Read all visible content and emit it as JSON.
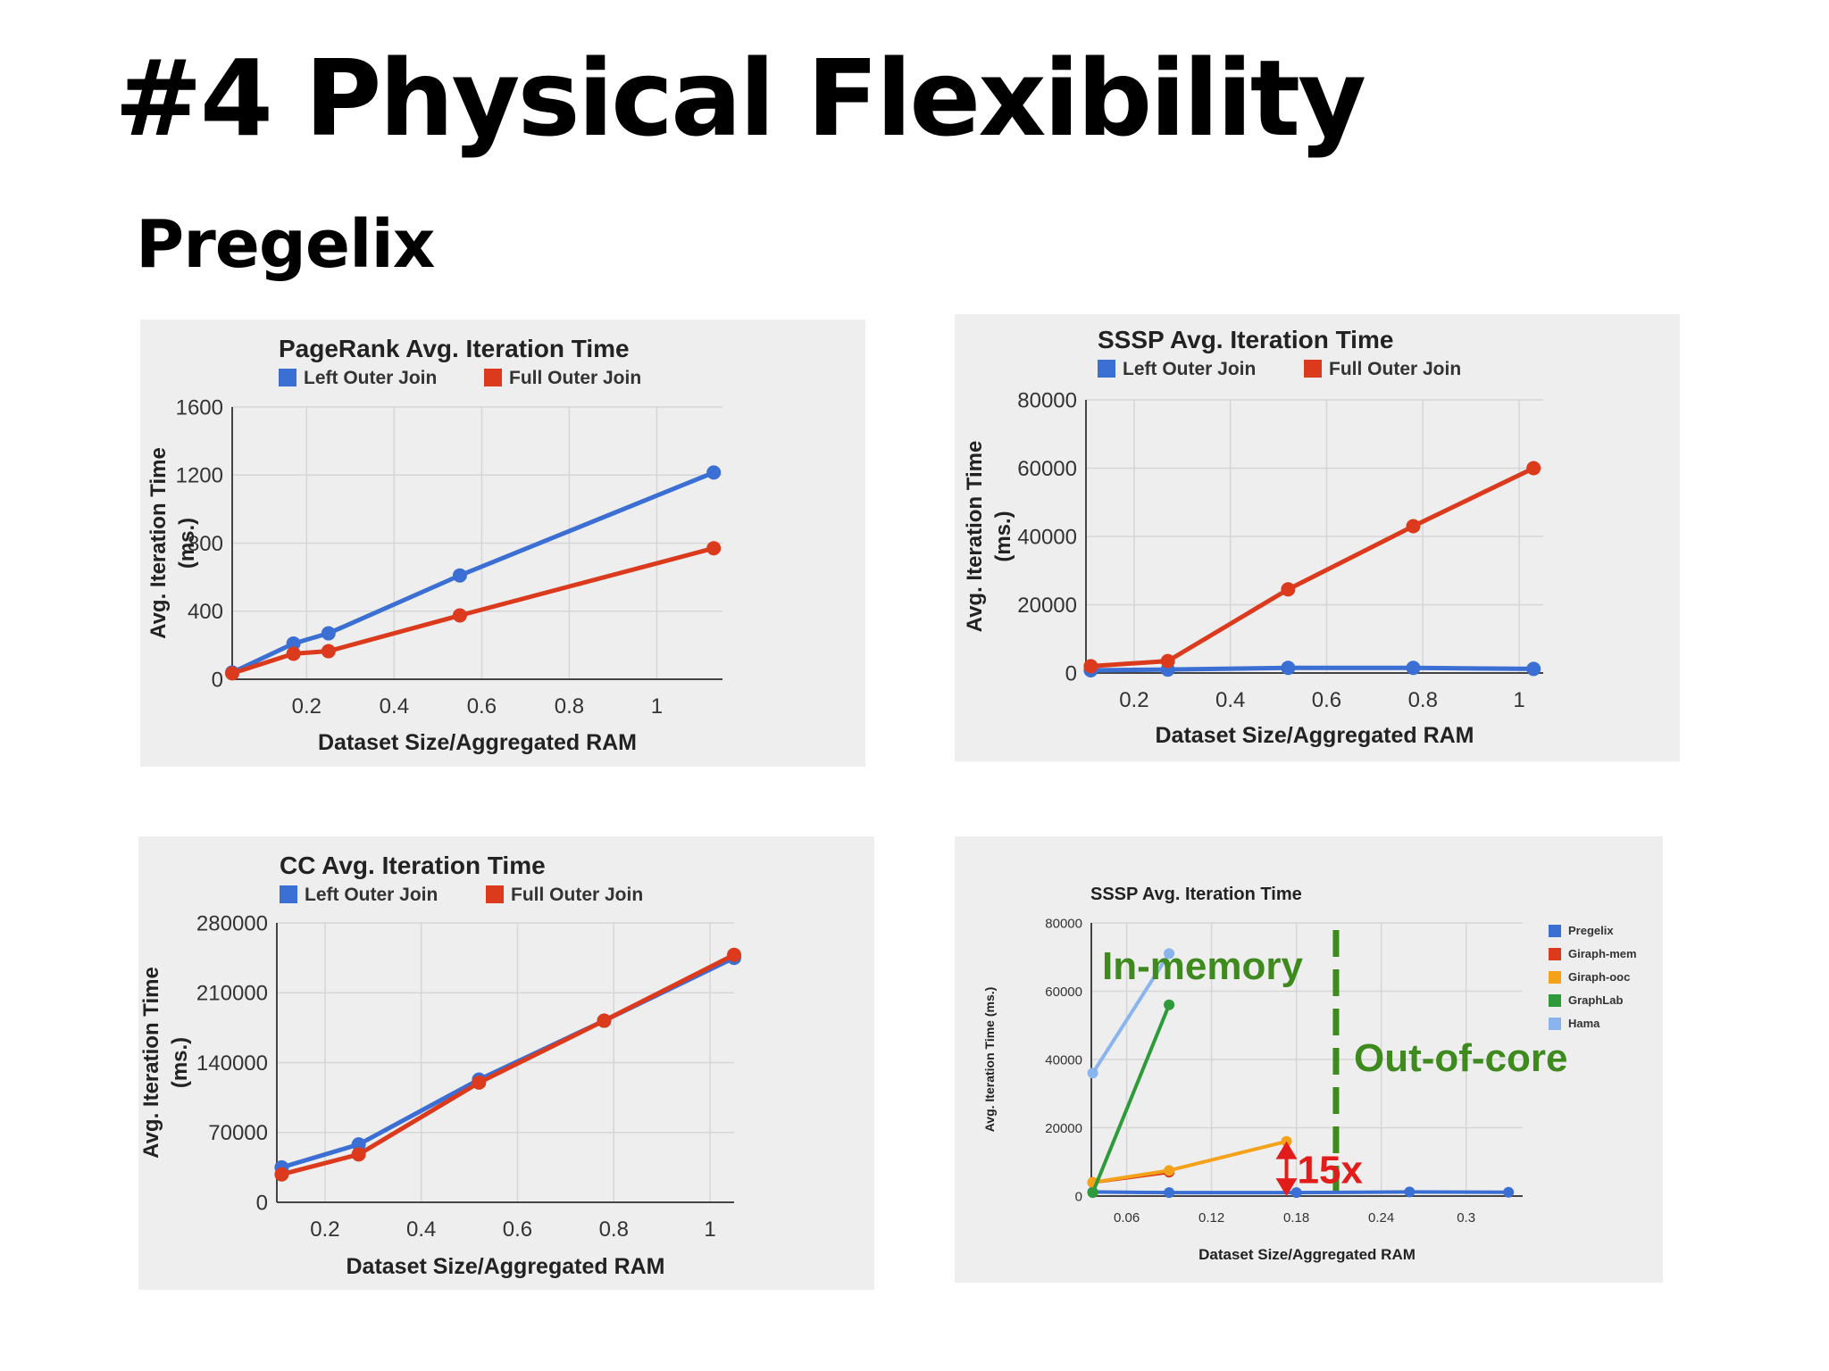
{
  "slide": {
    "title": "#4 Physical Flexibility",
    "subtitle": "Pregelix"
  },
  "chart_data": [
    {
      "type": "line",
      "title": "PageRank Avg. Iteration Time",
      "xlabel": "Dataset Size/Aggregated RAM",
      "ylabel": [
        "Avg. Iteration Time",
        "(ms.)"
      ],
      "xlim": [
        0.03,
        1.15
      ],
      "ylim": [
        0,
        1600
      ],
      "xticks": [
        0.2,
        0.4,
        0.6,
        0.8,
        1
      ],
      "xtick_labels": [
        "0.2",
        "0.4",
        "0.6",
        "0.8",
        "1"
      ],
      "yticks": [
        0,
        400,
        800,
        1200,
        1600
      ],
      "ytick_labels": [
        "0",
        "400",
        "800",
        "1200",
        "1600"
      ],
      "legend": "top",
      "grid": true,
      "series": [
        {
          "name": "Left Outer Join",
          "color": "#3b6fd4",
          "x": [
            0.03,
            0.17,
            0.25,
            0.55,
            1.13
          ],
          "y": [
            40,
            210,
            270,
            610,
            1215
          ]
        },
        {
          "name": "Full Outer Join",
          "color": "#dc3a1c",
          "x": [
            0.03,
            0.17,
            0.25,
            0.55,
            1.13
          ],
          "y": [
            35,
            150,
            165,
            375,
            770
          ]
        }
      ]
    },
    {
      "type": "line",
      "title": "SSSP Avg. Iteration Time",
      "xlabel": "Dataset Size/Aggregated RAM",
      "ylabel": [
        "Avg. Iteration Time",
        "(ms.)"
      ],
      "xlim": [
        0.1,
        1.05
      ],
      "ylim": [
        0,
        80000
      ],
      "xticks": [
        0.2,
        0.4,
        0.6,
        0.8,
        1
      ],
      "xtick_labels": [
        "0.2",
        "0.4",
        "0.6",
        "0.8",
        "1"
      ],
      "yticks": [
        0,
        20000,
        40000,
        60000,
        80000
      ],
      "ytick_labels": [
        "0",
        "20000",
        "40000",
        "60000",
        "80000"
      ],
      "legend": "top",
      "grid": true,
      "series": [
        {
          "name": "Left Outer Join",
          "color": "#3b6fd4",
          "x": [
            0.11,
            0.27,
            0.52,
            0.78,
            1.03
          ],
          "y": [
            800,
            1000,
            1500,
            1500,
            1200
          ]
        },
        {
          "name": "Full Outer Join",
          "color": "#dc3a1c",
          "x": [
            0.11,
            0.27,
            0.52,
            0.78,
            1.03
          ],
          "y": [
            2000,
            3500,
            24500,
            43000,
            60000
          ]
        }
      ]
    },
    {
      "type": "line",
      "title": "CC Avg. Iteration Time",
      "xlabel": "Dataset Size/Aggregated RAM",
      "ylabel": [
        "Avg. Iteration Time",
        "(ms.)"
      ],
      "xlim": [
        0.1,
        1.05
      ],
      "ylim": [
        0,
        280000
      ],
      "xticks": [
        0.2,
        0.4,
        0.6,
        0.8,
        1
      ],
      "xtick_labels": [
        "0.2",
        "0.4",
        "0.6",
        "0.8",
        "1"
      ],
      "yticks": [
        0,
        70000,
        140000,
        210000,
        280000
      ],
      "ytick_labels": [
        "0",
        "70000",
        "140000",
        "210000",
        "280000"
      ],
      "legend": "top",
      "grid": true,
      "series": [
        {
          "name": "Left Outer Join",
          "color": "#3b6fd4",
          "x": [
            0.11,
            0.27,
            0.52,
            0.78,
            1.05
          ],
          "y": [
            35000,
            58000,
            123000,
            182000,
            245000
          ]
        },
        {
          "name": "Full Outer Join",
          "color": "#dc3a1c",
          "x": [
            0.11,
            0.27,
            0.52,
            0.78,
            1.05
          ],
          "y": [
            28000,
            48000,
            120000,
            182000,
            248000
          ]
        }
      ]
    },
    {
      "type": "line",
      "title": "SSSP Avg. Iteration Time",
      "xlabel": "Dataset Size/Aggregated RAM",
      "ylabel": [
        "Avg. Iteration Time (ms.)"
      ],
      "xlim": [
        0.035,
        0.34
      ],
      "ylim": [
        0,
        80000
      ],
      "xticks": [
        0.06,
        0.12,
        0.18,
        0.24,
        0.3
      ],
      "xtick_labels": [
        "0.06",
        "0.12",
        "0.18",
        "0.24",
        "0.3"
      ],
      "yticks": [
        0,
        20000,
        40000,
        60000,
        80000
      ],
      "ytick_labels": [
        "0",
        "20000",
        "40000",
        "60000",
        "80000"
      ],
      "legend": "right",
      "grid": true,
      "series": [
        {
          "name": "Pregelix",
          "color": "#3b6fd4",
          "x": [
            0.036,
            0.09,
            0.18,
            0.26,
            0.33
          ],
          "y": [
            1200,
            1000,
            1000,
            1200,
            1100
          ]
        },
        {
          "name": "Giraph-mem",
          "color": "#dc3a1c",
          "x": [
            0.036,
            0.09
          ],
          "y": [
            4000,
            7000
          ]
        },
        {
          "name": "Giraph-ooc",
          "color": "#f4a21a",
          "x": [
            0.036,
            0.09,
            0.173
          ],
          "y": [
            4000,
            7500,
            16000
          ]
        },
        {
          "name": "GraphLab",
          "color": "#2e9b3a",
          "x": [
            0.036,
            0.09
          ],
          "y": [
            1000,
            56000
          ]
        },
        {
          "name": "Hama",
          "color": "#8ab4ee",
          "x": [
            0.036,
            0.09
          ],
          "y": [
            36000,
            71000
          ]
        }
      ],
      "annotations": [
        {
          "text": "In-memory",
          "color": "#3f8a1e"
        },
        {
          "text": "Out-of-core",
          "color": "#3f8a1e"
        },
        {
          "text": "15x",
          "color": "#e21b1b"
        }
      ]
    }
  ]
}
